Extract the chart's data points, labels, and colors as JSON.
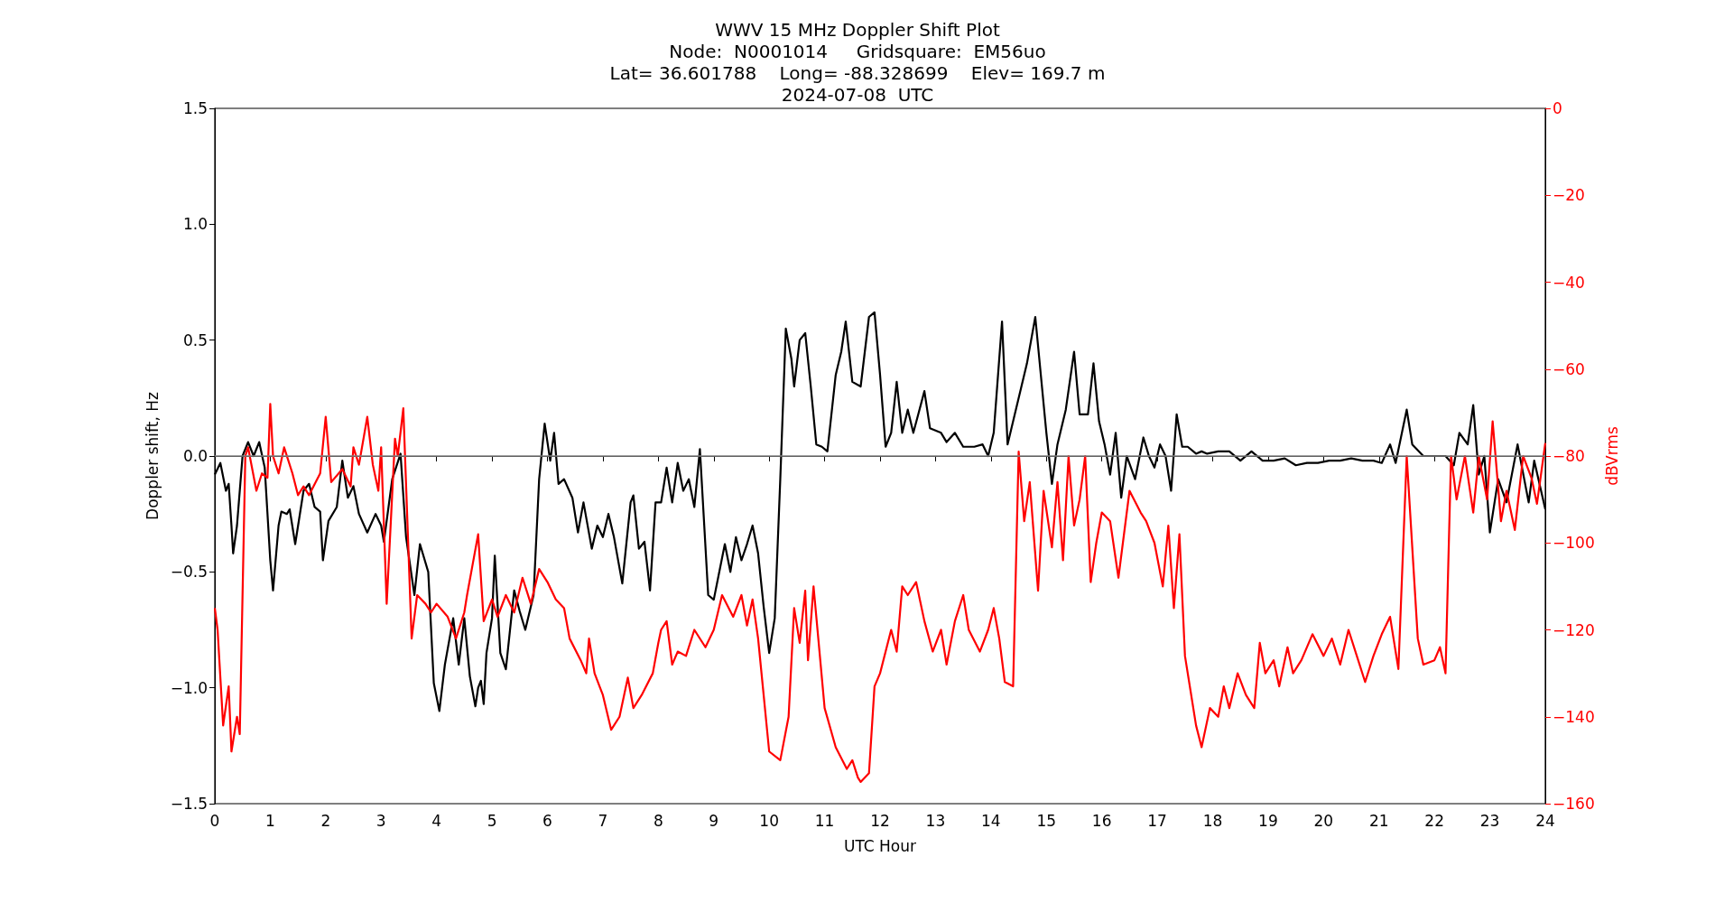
{
  "chart_data": {
    "type": "line",
    "title": "WWV 15 MHz Doppler Shift Plot",
    "subtitle": "Node:  N0001014     Gridsquare:  EM56uo\nLat= 36.601788    Long= -88.328699    Elev= 169.7 m\n2024-07-08  UTC",
    "xlabel": "UTC Hour",
    "ylabel": "Doppler shift, Hz",
    "y2label": "dBVrms",
    "xlim": [
      0,
      24
    ],
    "xticks": [
      0,
      1,
      2,
      3,
      4,
      5,
      6,
      7,
      8,
      9,
      10,
      11,
      12,
      13,
      14,
      15,
      16,
      17,
      18,
      19,
      20,
      21,
      22,
      23,
      24
    ],
    "ylim": [
      -1.5,
      1.5
    ],
    "yticks": [
      {
        "value": -1.5,
        "label": "−1.5"
      },
      {
        "value": -1.0,
        "label": "−1.0"
      },
      {
        "value": -0.5,
        "label": "−0.5"
      },
      {
        "value": 0,
        "label": "0.0"
      },
      {
        "value": 0.5,
        "label": "0.5"
      },
      {
        "value": 1.0,
        "label": "1.0"
      },
      {
        "value": 1.5,
        "label": "1.5"
      }
    ],
    "y2lim": [
      -160,
      0
    ],
    "y2ticks": [
      {
        "value": -160,
        "label": "−160"
      },
      {
        "value": -140,
        "label": "−140"
      },
      {
        "value": -120,
        "label": "−120"
      },
      {
        "value": -100,
        "label": "−100"
      },
      {
        "value": -80,
        "label": "−80"
      },
      {
        "value": -60,
        "label": "−60"
      },
      {
        "value": -40,
        "label": "−40"
      },
      {
        "value": -20,
        "label": "−20"
      },
      {
        "value": 0,
        "label": "0"
      }
    ],
    "grid": false,
    "marker": "none",
    "line_style": "solid",
    "ref_lines": [
      {
        "axis": "y",
        "value": 0,
        "color": "#808080"
      }
    ],
    "series": [
      {
        "color": "#000000",
        "axis": "y",
        "x": [
          0,
          0.1,
          0.2,
          0.25,
          0.3,
          0.33,
          0.4,
          0.5,
          0.6,
          0.7,
          0.8,
          0.9,
          1.0,
          1.05,
          1.15,
          1.2,
          1.3,
          1.35,
          1.45,
          1.6,
          1.7,
          1.8,
          1.9,
          1.95,
          2.05,
          2.2,
          2.3,
          2.4,
          2.5,
          2.6,
          2.75,
          2.9,
          3.0,
          3.05,
          3.2,
          3.35,
          3.45,
          3.6,
          3.7,
          3.85,
          3.95,
          4.05,
          4.15,
          4.3,
          4.4,
          4.5,
          4.6,
          4.7,
          4.75,
          4.8,
          4.85,
          4.9,
          5.0,
          5.05,
          5.15,
          5.25,
          5.4,
          5.5,
          5.6,
          5.75,
          5.85,
          5.95,
          6.05,
          6.12,
          6.2,
          6.3,
          6.45,
          6.55,
          6.65,
          6.8,
          6.9,
          7.0,
          7.1,
          7.2,
          7.35,
          7.5,
          7.55,
          7.65,
          7.75,
          7.85,
          7.95,
          8.05,
          8.15,
          8.25,
          8.35,
          8.45,
          8.55,
          8.65,
          8.75,
          8.9,
          9.0,
          9.1,
          9.2,
          9.3,
          9.4,
          9.5,
          9.6,
          9.7,
          9.8,
          9.9,
          10.0,
          10.1,
          10.2,
          10.3,
          10.4,
          10.45,
          10.55,
          10.65,
          10.75,
          10.85,
          10.95,
          11.05,
          11.2,
          11.3,
          11.38,
          11.5,
          11.65,
          11.8,
          11.9,
          12.0,
          12.1,
          12.2,
          12.3,
          12.4,
          12.5,
          12.6,
          12.8,
          12.9,
          13.1,
          13.2,
          13.35,
          13.5,
          13.7,
          13.85,
          13.95,
          14.05,
          14.2,
          14.3,
          14.4,
          14.55,
          14.65,
          14.8,
          15.0,
          15.1,
          15.2,
          15.35,
          15.5,
          15.6,
          15.75,
          15.85,
          15.95,
          16.05,
          16.15,
          16.25,
          16.35,
          16.45,
          16.6,
          16.75,
          16.85,
          16.95,
          17.05,
          17.15,
          17.25,
          17.35,
          17.45,
          17.55,
          17.7,
          17.8,
          17.9,
          18.1,
          18.3,
          18.5,
          18.7,
          18.9,
          19.1,
          19.3,
          19.5,
          19.7,
          19.9,
          20.1,
          20.3,
          20.5,
          20.7,
          20.9,
          21.05,
          21.2,
          21.3,
          21.5,
          21.6,
          21.8,
          22.0,
          22.2,
          22.35,
          22.45,
          22.6,
          22.7,
          22.8,
          22.9,
          23.0,
          23.15,
          23.3,
          23.5,
          23.7,
          23.8,
          24.0
        ],
        "values": [
          -0.08,
          -0.03,
          -0.15,
          -0.12,
          -0.3,
          -0.42,
          -0.3,
          0.0,
          0.06,
          0.0,
          0.06,
          -0.05,
          -0.45,
          -0.58,
          -0.3,
          -0.24,
          -0.25,
          -0.23,
          -0.38,
          -0.15,
          -0.12,
          -0.22,
          -0.24,
          -0.45,
          -0.28,
          -0.22,
          -0.02,
          -0.18,
          -0.13,
          -0.25,
          -0.33,
          -0.25,
          -0.3,
          -0.37,
          -0.1,
          0.01,
          -0.35,
          -0.6,
          -0.38,
          -0.5,
          -0.98,
          -1.1,
          -0.9,
          -0.7,
          -0.9,
          -0.7,
          -0.95,
          -1.08,
          -1.0,
          -0.97,
          -1.07,
          -0.85,
          -0.7,
          -0.43,
          -0.85,
          -0.92,
          -0.58,
          -0.67,
          -0.75,
          -0.6,
          -0.1,
          0.14,
          -0.02,
          0.1,
          -0.12,
          -0.1,
          -0.18,
          -0.33,
          -0.2,
          -0.4,
          -0.3,
          -0.35,
          -0.25,
          -0.35,
          -0.55,
          -0.2,
          -0.17,
          -0.4,
          -0.37,
          -0.58,
          -0.2,
          -0.2,
          -0.05,
          -0.2,
          -0.03,
          -0.15,
          -0.1,
          -0.22,
          0.03,
          -0.6,
          -0.62,
          -0.5,
          -0.38,
          -0.5,
          -0.35,
          -0.45,
          -0.38,
          -0.3,
          -0.42,
          -0.65,
          -0.85,
          -0.7,
          -0.1,
          0.55,
          0.42,
          0.3,
          0.5,
          0.53,
          0.3,
          0.05,
          0.04,
          0.02,
          0.35,
          0.45,
          0.58,
          0.32,
          0.3,
          0.6,
          0.62,
          0.35,
          0.04,
          0.1,
          0.32,
          0.1,
          0.2,
          0.1,
          0.28,
          0.12,
          0.1,
          0.06,
          0.1,
          0.04,
          0.04,
          0.05,
          0.0,
          0.1,
          0.58,
          0.05,
          0.15,
          0.3,
          0.4,
          0.6,
          0.1,
          -0.12,
          0.05,
          0.2,
          0.45,
          0.18,
          0.18,
          0.4,
          0.15,
          0.05,
          -0.08,
          0.1,
          -0.18,
          0.0,
          -0.1,
          0.08,
          0.0,
          -0.05,
          0.05,
          0.0,
          -0.15,
          0.18,
          0.04,
          0.04,
          0.01,
          0.02,
          0.01,
          0.02,
          0.02,
          -0.02,
          0.02,
          -0.02,
          -0.02,
          -0.01,
          -0.04,
          -0.03,
          -0.03,
          -0.02,
          -0.02,
          -0.01,
          -0.02,
          -0.02,
          -0.03,
          0.05,
          -0.03,
          0.2,
          0.05,
          0.0,
          0.0,
          0.0,
          -0.04,
          0.1,
          0.05,
          0.22,
          -0.08,
          0.0,
          -0.33,
          -0.1,
          -0.2,
          0.05,
          -0.2,
          -0.02,
          -0.23
        ]
      },
      {
        "color": "#ff0000",
        "axis": "y2",
        "x": [
          0,
          0.05,
          0.15,
          0.25,
          0.3,
          0.4,
          0.45,
          0.55,
          0.6,
          0.75,
          0.85,
          0.95,
          1.0,
          1.05,
          1.15,
          1.25,
          1.4,
          1.5,
          1.6,
          1.7,
          1.9,
          2.0,
          2.1,
          2.3,
          2.45,
          2.5,
          2.6,
          2.75,
          2.85,
          2.95,
          3.0,
          3.1,
          3.25,
          3.3,
          3.4,
          3.55,
          3.65,
          3.8,
          3.9,
          4.0,
          4.2,
          4.35,
          4.5,
          4.55,
          4.75,
          4.85,
          5.0,
          5.1,
          5.25,
          5.4,
          5.55,
          5.7,
          5.85,
          6.0,
          6.15,
          6.3,
          6.4,
          6.6,
          6.7,
          6.75,
          6.85,
          7.0,
          7.15,
          7.3,
          7.45,
          7.55,
          7.7,
          7.9,
          8.0,
          8.05,
          8.15,
          8.25,
          8.35,
          8.5,
          8.65,
          8.85,
          9.0,
          9.15,
          9.35,
          9.5,
          9.6,
          9.7,
          9.8,
          10.0,
          10.2,
          10.35,
          10.45,
          10.55,
          10.65,
          10.7,
          10.8,
          11.0,
          11.2,
          11.4,
          11.5,
          11.6,
          11.65,
          11.8,
          11.9,
          12.0,
          12.2,
          12.3,
          12.4,
          12.5,
          12.65,
          12.8,
          12.95,
          13.1,
          13.2,
          13.35,
          13.5,
          13.6,
          13.8,
          13.95,
          14.05,
          14.15,
          14.25,
          14.4,
          14.5,
          14.6,
          14.7,
          14.85,
          14.95,
          15.1,
          15.2,
          15.3,
          15.4,
          15.5,
          15.6,
          15.7,
          15.8,
          15.9,
          16.0,
          16.15,
          16.3,
          16.5,
          16.7,
          16.8,
          16.95,
          17.1,
          17.2,
          17.3,
          17.4,
          17.5,
          17.7,
          17.8,
          17.95,
          18.1,
          18.2,
          18.3,
          18.45,
          18.6,
          18.75,
          18.85,
          18.95,
          19.1,
          19.2,
          19.35,
          19.45,
          19.6,
          19.8,
          20.0,
          20.15,
          20.3,
          20.45,
          20.6,
          20.75,
          20.9,
          21.05,
          21.2,
          21.35,
          21.5,
          21.7,
          21.8,
          22.0,
          22.1,
          22.2,
          22.3,
          22.4,
          22.55,
          22.7,
          22.8,
          22.95,
          23.05,
          23.2,
          23.3,
          23.45,
          23.6,
          23.75,
          23.85,
          24.0
        ],
        "values": [
          -115,
          -120,
          -142,
          -133,
          -148,
          -140,
          -144,
          -80,
          -78,
          -88,
          -84,
          -85,
          -68,
          -80,
          -84,
          -78,
          -84,
          -89,
          -87,
          -89,
          -84,
          -71,
          -86,
          -83,
          -87,
          -78,
          -82,
          -71,
          -82,
          -88,
          -78,
          -114,
          -76,
          -80,
          -69,
          -122,
          -112,
          -114,
          -116,
          -114,
          -117,
          -122,
          -116,
          -112,
          -98,
          -118,
          -113,
          -117,
          -112,
          -116,
          -108,
          -114,
          -106,
          -109,
          -113,
          -115,
          -122,
          -127,
          -130,
          -122,
          -130,
          -135,
          -143,
          -140,
          -131,
          -138,
          -135,
          -130,
          -123,
          -120,
          -118,
          -128,
          -125,
          -126,
          -120,
          -124,
          -120,
          -112,
          -117,
          -112,
          -119,
          -113,
          -122,
          -148,
          -150,
          -140,
          -115,
          -123,
          -111,
          -127,
          -110,
          -138,
          -147,
          -152,
          -150,
          -154,
          -155,
          -153,
          -133,
          -130,
          -120,
          -125,
          -110,
          -112,
          -109,
          -118,
          -125,
          -120,
          -128,
          -118,
          -112,
          -120,
          -125,
          -120,
          -115,
          -122,
          -132,
          -133,
          -79,
          -95,
          -86,
          -111,
          -88,
          -101,
          -86,
          -104,
          -80,
          -96,
          -90,
          -80,
          -109,
          -100,
          -93,
          -95,
          -108,
          -88,
          -93,
          -95,
          -100,
          -110,
          -96,
          -115,
          -98,
          -126,
          -142,
          -147,
          -138,
          -140,
          -133,
          -138,
          -130,
          -135,
          -138,
          -123,
          -130,
          -127,
          -133,
          -124,
          -130,
          -127,
          -121,
          -126,
          -122,
          -128,
          -120,
          -126,
          -132,
          -126,
          -121,
          -117,
          -129,
          -80,
          -122,
          -128,
          -127,
          -124,
          -130,
          -80,
          -90,
          -80,
          -93,
          -80,
          -90,
          -72,
          -95,
          -88,
          -97,
          -80,
          -85,
          -91,
          -77
        ]
      }
    ]
  }
}
